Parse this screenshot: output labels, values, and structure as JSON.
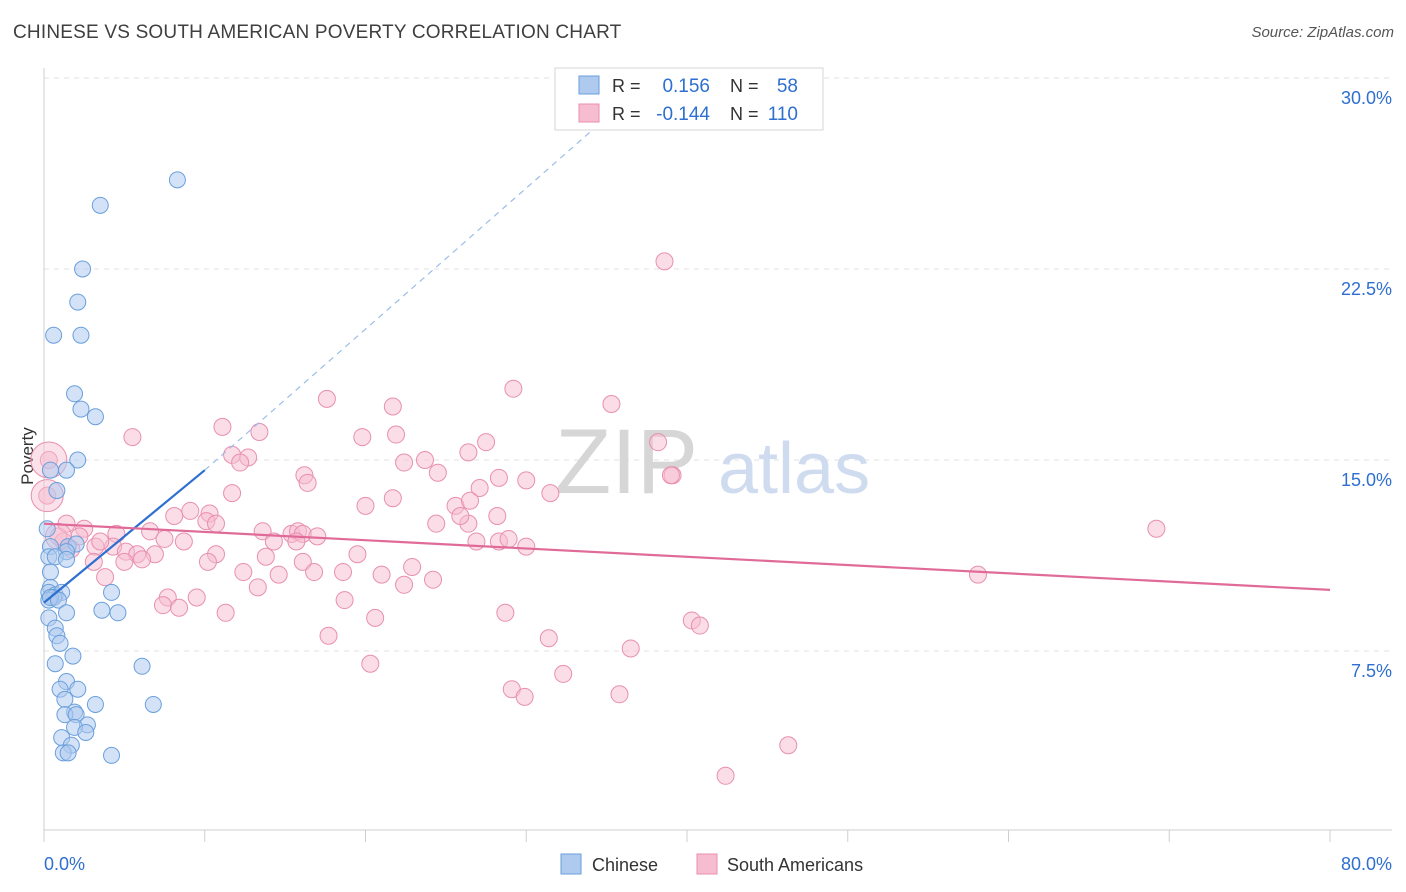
{
  "chart_data": {
    "type": "scatter",
    "title": "CHINESE VS SOUTH AMERICAN POVERTY CORRELATION CHART",
    "source": "Source: ZipAtlas.com",
    "xlabel": "",
    "ylabel": "Poverty",
    "xlim": [
      0,
      80
    ],
    "ylim": [
      0,
      30
    ],
    "x_tick_labels": [
      "0.0%",
      "80.0%"
    ],
    "y_ticks": [
      7.5,
      15.0,
      22.5,
      30.0
    ],
    "y_tick_labels": [
      "7.5%",
      "15.0%",
      "22.5%",
      "30.0%"
    ],
    "grid": true,
    "watermark": "ZIPatlas",
    "colors": {
      "chinese_fill": "#aecbef",
      "chinese_stroke": "#6a9fdc",
      "chinese_line": "#2e6fd0",
      "south_fill": "#f6bcd0",
      "south_stroke": "#e98fb0",
      "south_line": "#e06b98",
      "value_text": "#2e6fd0"
    },
    "legend": {
      "position": "top-center",
      "rows": [
        {
          "r_label": "R =",
          "r_value": "0.156",
          "n_label": "N =",
          "n_value": "58"
        },
        {
          "r_label": "R =",
          "r_value": "-0.144",
          "n_label": "N =",
          "n_value": "110"
        }
      ]
    },
    "series": [
      {
        "name": "Chinese",
        "trend": {
          "x0": 0.0,
          "y0": 9.4,
          "x1": 10.0,
          "y1": 14.6,
          "dashed_to_x": 36.0,
          "dashed_to_y": 29.0
        },
        "points": [
          [
            8.3,
            26.0
          ],
          [
            3.5,
            25.0
          ],
          [
            2.4,
            22.5
          ],
          [
            2.1,
            21.2
          ],
          [
            0.6,
            19.9
          ],
          [
            2.3,
            19.9
          ],
          [
            1.9,
            17.6
          ],
          [
            2.3,
            17.0
          ],
          [
            3.2,
            16.7
          ],
          [
            2.1,
            15.0
          ],
          [
            0.4,
            14.6
          ],
          [
            1.4,
            14.6
          ],
          [
            0.8,
            13.8
          ],
          [
            0.4,
            11.6
          ],
          [
            1.5,
            11.6
          ],
          [
            2.0,
            11.7
          ],
          [
            1.4,
            11.4
          ],
          [
            0.3,
            11.2
          ],
          [
            0.7,
            11.2
          ],
          [
            1.4,
            11.1
          ],
          [
            0.4,
            10.6
          ],
          [
            0.4,
            10.0
          ],
          [
            0.3,
            9.8
          ],
          [
            0.7,
            9.7
          ],
          [
            1.1,
            9.8
          ],
          [
            0.6,
            9.6
          ],
          [
            0.3,
            9.5
          ],
          [
            0.4,
            9.6
          ],
          [
            0.9,
            9.5
          ],
          [
            4.2,
            9.8
          ],
          [
            3.6,
            9.1
          ],
          [
            4.6,
            9.0
          ],
          [
            1.4,
            9.0
          ],
          [
            0.3,
            8.8
          ],
          [
            0.7,
            8.4
          ],
          [
            0.8,
            8.1
          ],
          [
            1.0,
            7.8
          ],
          [
            1.8,
            7.3
          ],
          [
            0.7,
            7.0
          ],
          [
            6.1,
            6.9
          ],
          [
            1.4,
            6.3
          ],
          [
            1.0,
            6.0
          ],
          [
            2.1,
            6.0
          ],
          [
            1.3,
            5.6
          ],
          [
            3.2,
            5.4
          ],
          [
            6.8,
            5.4
          ],
          [
            1.9,
            5.1
          ],
          [
            1.3,
            5.0
          ],
          [
            2.0,
            5.0
          ],
          [
            2.7,
            4.6
          ],
          [
            1.9,
            4.5
          ],
          [
            2.6,
            4.3
          ],
          [
            1.1,
            4.1
          ],
          [
            1.7,
            3.8
          ],
          [
            1.2,
            3.5
          ],
          [
            1.5,
            3.5
          ],
          [
            4.2,
            3.4
          ],
          [
            0.2,
            12.3
          ]
        ]
      },
      {
        "name": "South Americans",
        "trend": {
          "x0": 0.0,
          "y0": 12.5,
          "x1": 80.0,
          "y1": 9.9
        },
        "points": [
          [
            38.6,
            22.8
          ],
          [
            17.6,
            17.4
          ],
          [
            35.3,
            17.2
          ],
          [
            29.2,
            17.8
          ],
          [
            21.7,
            17.1
          ],
          [
            5.5,
            15.9
          ],
          [
            11.1,
            16.3
          ],
          [
            13.4,
            16.1
          ],
          [
            19.8,
            15.9
          ],
          [
            21.9,
            16.0
          ],
          [
            27.5,
            15.7
          ],
          [
            38.2,
            15.7
          ],
          [
            11.7,
            15.2
          ],
          [
            12.7,
            15.1
          ],
          [
            12.2,
            14.9
          ],
          [
            22.4,
            14.9
          ],
          [
            23.7,
            15.0
          ],
          [
            26.4,
            15.3
          ],
          [
            16.2,
            14.4
          ],
          [
            24.5,
            14.5
          ],
          [
            28.3,
            14.3
          ],
          [
            30.0,
            14.2
          ],
          [
            39.1,
            14.4
          ],
          [
            16.4,
            14.1
          ],
          [
            11.7,
            13.7
          ],
          [
            27.1,
            13.9
          ],
          [
            31.5,
            13.7
          ],
          [
            21.7,
            13.5
          ],
          [
            25.6,
            13.2
          ],
          [
            26.5,
            13.4
          ],
          [
            20.0,
            13.2
          ],
          [
            9.1,
            13.0
          ],
          [
            10.3,
            12.9
          ],
          [
            8.1,
            12.8
          ],
          [
            10.1,
            12.6
          ],
          [
            10.7,
            12.5
          ],
          [
            24.4,
            12.5
          ],
          [
            26.4,
            12.5
          ],
          [
            25.9,
            12.8
          ],
          [
            28.2,
            12.8
          ],
          [
            2.5,
            12.3
          ],
          [
            4.5,
            12.1
          ],
          [
            6.6,
            12.2
          ],
          [
            13.6,
            12.2
          ],
          [
            15.4,
            12.1
          ],
          [
            15.8,
            12.2
          ],
          [
            16.1,
            12.1
          ],
          [
            17.0,
            12.0
          ],
          [
            7.5,
            11.9
          ],
          [
            8.7,
            11.8
          ],
          [
            14.3,
            11.8
          ],
          [
            15.7,
            11.8
          ],
          [
            26.9,
            11.8
          ],
          [
            28.3,
            11.8
          ],
          [
            28.9,
            11.9
          ],
          [
            1.2,
            11.8
          ],
          [
            1.7,
            11.5
          ],
          [
            3.2,
            11.6
          ],
          [
            4.3,
            11.6
          ],
          [
            5.1,
            11.4
          ],
          [
            5.8,
            11.3
          ],
          [
            6.9,
            11.3
          ],
          [
            10.7,
            11.3
          ],
          [
            13.8,
            11.2
          ],
          [
            19.5,
            11.3
          ],
          [
            3.1,
            11.0
          ],
          [
            6.1,
            11.1
          ],
          [
            10.2,
            11.0
          ],
          [
            16.1,
            11.0
          ],
          [
            22.9,
            10.8
          ],
          [
            12.4,
            10.6
          ],
          [
            14.6,
            10.5
          ],
          [
            16.8,
            10.6
          ],
          [
            18.6,
            10.6
          ],
          [
            21.0,
            10.5
          ],
          [
            24.2,
            10.3
          ],
          [
            3.8,
            10.4
          ],
          [
            13.3,
            10.0
          ],
          [
            22.4,
            10.1
          ],
          [
            7.7,
            9.6
          ],
          [
            9.5,
            9.6
          ],
          [
            18.7,
            9.5
          ],
          [
            7.4,
            9.3
          ],
          [
            8.4,
            9.2
          ],
          [
            11.3,
            9.0
          ],
          [
            20.6,
            8.8
          ],
          [
            28.7,
            9.0
          ],
          [
            40.3,
            8.7
          ],
          [
            40.8,
            8.5
          ],
          [
            17.7,
            8.1
          ],
          [
            31.4,
            8.0
          ],
          [
            36.5,
            7.6
          ],
          [
            20.3,
            7.0
          ],
          [
            32.3,
            6.6
          ],
          [
            29.1,
            6.0
          ],
          [
            29.9,
            5.7
          ],
          [
            35.8,
            5.8
          ],
          [
            46.3,
            3.8
          ],
          [
            42.4,
            2.6
          ],
          [
            69.2,
            12.3
          ],
          [
            58.1,
            10.5
          ],
          [
            39.0,
            14.4
          ],
          [
            30.0,
            11.6
          ],
          [
            0.3,
            15.0
          ],
          [
            0.2,
            13.6
          ],
          [
            0.9,
            12.0
          ],
          [
            1.4,
            12.5
          ],
          [
            2.2,
            12.0
          ],
          [
            3.5,
            11.8
          ],
          [
            5.0,
            11.0
          ]
        ]
      }
    ]
  }
}
